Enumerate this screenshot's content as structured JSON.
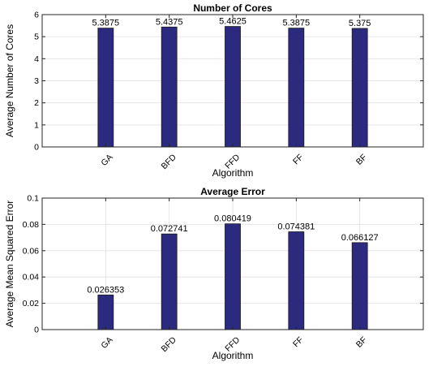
{
  "chart_data": [
    {
      "type": "bar",
      "title": "Number of Cores",
      "xlabel": "Algorithm",
      "ylabel": "Average Number of Cores",
      "categories": [
        "GA",
        "BFD",
        "FFD",
        "FF",
        "BF"
      ],
      "values": [
        5.3875,
        5.4375,
        5.4625,
        5.3875,
        5.375
      ],
      "data_labels": [
        "5.3875",
        "5.4375",
        "5.4625",
        "5.3875",
        "5.375"
      ],
      "ylim": [
        0,
        6
      ],
      "yticks": [
        "0",
        "1",
        "2",
        "3",
        "4",
        "5",
        "6"
      ],
      "grid": true,
      "bar_color": "#2b2a7e"
    },
    {
      "type": "bar",
      "title": "Average Error",
      "xlabel": "Algorithm",
      "ylabel": "Average Mean Squared Error",
      "categories": [
        "GA",
        "BFD",
        "FFD",
        "FF",
        "BF"
      ],
      "values": [
        0.026353,
        0.072741,
        0.080419,
        0.074381,
        0.066127
      ],
      "data_labels": [
        "0.026353",
        "0.072741",
        "0.080419",
        "0.074381",
        "0.066127"
      ],
      "ylim": [
        0,
        0.1
      ],
      "yticks": [
        "0",
        "0.02",
        "0.04",
        "0.06",
        "0.08",
        "0.1"
      ],
      "grid": true,
      "bar_color": "#2b2a7e"
    }
  ]
}
